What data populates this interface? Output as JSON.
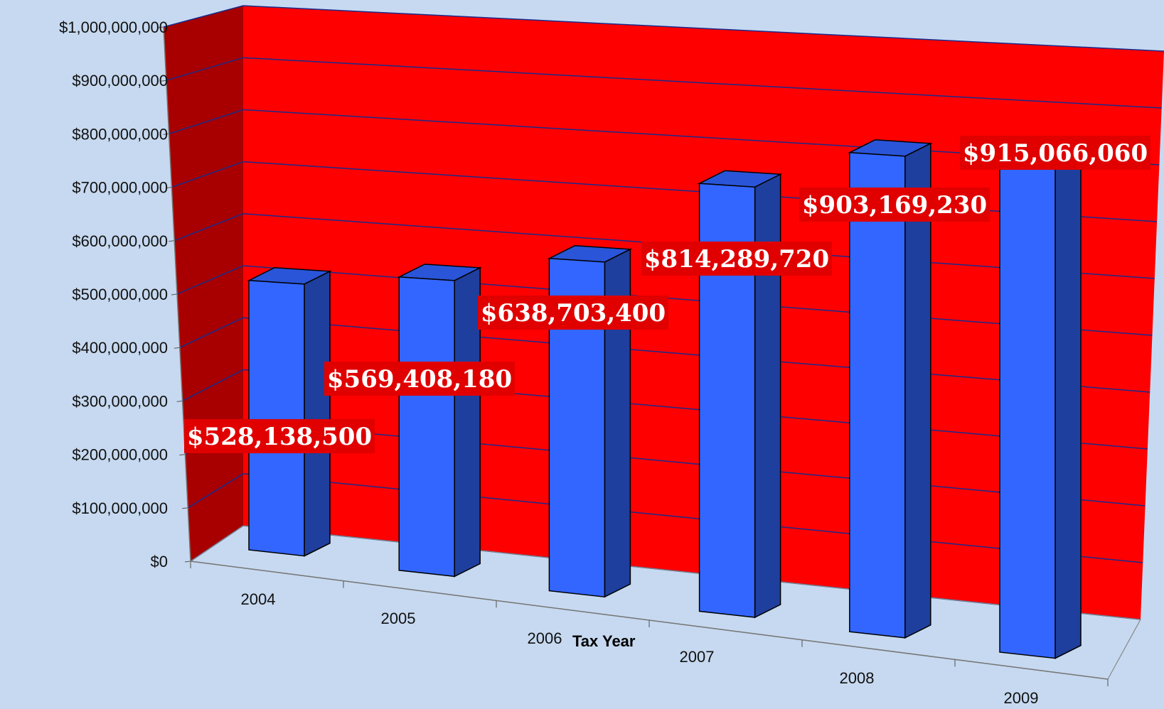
{
  "colors": {
    "background": "#c6d9f0",
    "wall_back": "#ff0000",
    "wall_side": "#a80000",
    "bar_front": "#3366ff",
    "bar_side": "#1f3f9e",
    "bar_top": "#2a55d9",
    "gridline": "#1a2a8a",
    "label_bg": "#e00000",
    "label_text": "#ffffff"
  },
  "chart_data": {
    "type": "bar",
    "title": "",
    "xlabel": "Tax Year",
    "ylabel": "",
    "categories": [
      "2004",
      "2005",
      "2006",
      "2007",
      "2008",
      "2009"
    ],
    "values": [
      528138500,
      569408180,
      638703400,
      814289720,
      903169230,
      915066060
    ],
    "data_labels": [
      "$528,138,500",
      "$569,408,180",
      "$638,703,400",
      "$814,289,720",
      "$903,169,230",
      "$915,066,060"
    ],
    "ylim": [
      0,
      1000000000
    ],
    "y_ticks": [
      0,
      100000000,
      200000000,
      300000000,
      400000000,
      500000000,
      600000000,
      700000000,
      800000000,
      900000000,
      1000000000
    ],
    "y_tick_labels": [
      "$0",
      "$100,000,000",
      "$200,000,000",
      "$300,000,000",
      "$400,000,000",
      "$500,000,000",
      "$600,000,000",
      "$700,000,000",
      "$800,000,000",
      "$900,000,000",
      "$1,000,000,000"
    ],
    "grid": true,
    "style": "3d-column"
  }
}
